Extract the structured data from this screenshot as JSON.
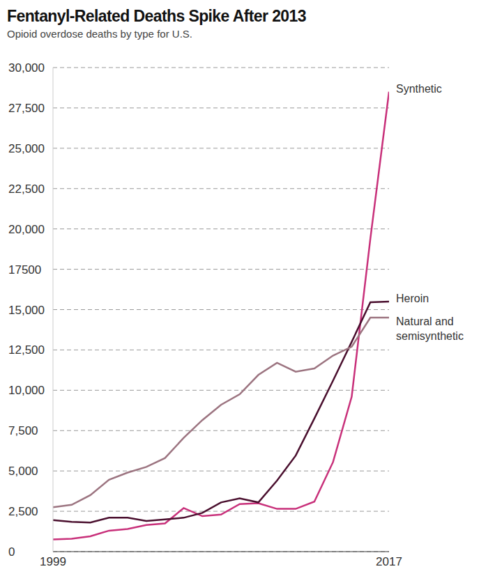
{
  "chart_data": {
    "type": "line",
    "title": "Fentanyl-Related Deaths Spike After 2013",
    "subtitle": "Opioid overdose deaths by type for U.S.",
    "x": [
      1999,
      2000,
      2001,
      2002,
      2003,
      2004,
      2005,
      2006,
      2007,
      2008,
      2009,
      2010,
      2011,
      2012,
      2013,
      2014,
      2015,
      2016,
      2017
    ],
    "xlim": [
      1999,
      2017
    ],
    "xticks": [
      1999,
      2017
    ],
    "ylim": [
      0,
      30000
    ],
    "yticks": [
      {
        "value": 0,
        "label": "0"
      },
      {
        "value": 2500,
        "label": "2,500"
      },
      {
        "value": 5000,
        "label": "5,000"
      },
      {
        "value": 7500,
        "label": "7,500"
      },
      {
        "value": 10000,
        "label": "10,000"
      },
      {
        "value": 12500,
        "label": "12,500"
      },
      {
        "value": 15000,
        "label": "15,000"
      },
      {
        "value": 17500,
        "label": "17500"
      },
      {
        "value": 20000,
        "label": "20,000"
      },
      {
        "value": 22500,
        "label": "22,500"
      },
      {
        "value": 25000,
        "label": "25,000"
      },
      {
        "value": 27500,
        "label": "27,500"
      },
      {
        "value": 30000,
        "label": "30,000"
      }
    ],
    "grid": true,
    "series": [
      {
        "name": "Synthetic",
        "color": "#c8307a",
        "values": [
          750,
          800,
          950,
          1300,
          1400,
          1650,
          1750,
          2700,
          2200,
          2300,
          2950,
          3000,
          2650,
          2650,
          3100,
          5550,
          9600,
          19400,
          28500
        ]
      },
      {
        "name": "Heroin",
        "color": "#4a0f2e",
        "values": [
          1950,
          1850,
          1800,
          2100,
          2100,
          1900,
          2000,
          2100,
          2400,
          3050,
          3300,
          3050,
          4400,
          5950,
          8250,
          10600,
          13000,
          15450,
          15500
        ]
      },
      {
        "name": "Natural and semisynthetic",
        "color": "#9c7480",
        "values": [
          2750,
          2900,
          3500,
          4450,
          4900,
          5250,
          5800,
          7050,
          8150,
          9100,
          9750,
          10950,
          11700,
          11150,
          11350,
          12150,
          12700,
          14500,
          14500
        ]
      }
    ]
  }
}
